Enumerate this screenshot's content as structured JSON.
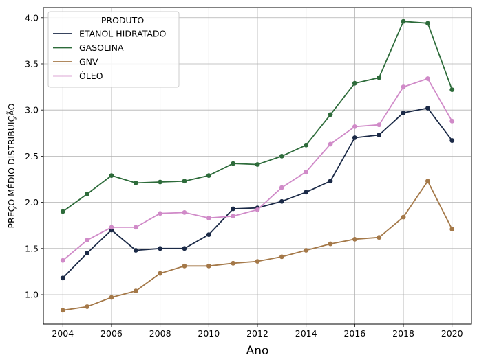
{
  "chart_data": {
    "type": "line",
    "title": "",
    "xlabel": "Ano",
    "ylabel": "PREÇO MÉDIO DISTRIBUIÇÃO",
    "x": [
      2004,
      2005,
      2006,
      2007,
      2008,
      2009,
      2010,
      2011,
      2012,
      2013,
      2014,
      2015,
      2016,
      2017,
      2018,
      2019,
      2020
    ],
    "xlim": [
      2003.2,
      2020.8
    ],
    "ylim": [
      0.68,
      4.11
    ],
    "xticks": [
      2004,
      2006,
      2008,
      2010,
      2012,
      2014,
      2016,
      2018,
      2020
    ],
    "xtick_labels": [
      "2004",
      "2006",
      "2008",
      "2010",
      "2012",
      "2014",
      "2016",
      "2018",
      "2020"
    ],
    "yticks": [
      1.0,
      1.5,
      2.0,
      2.5,
      3.0,
      3.5,
      4.0
    ],
    "ytick_labels": [
      "1.0",
      "1.5",
      "2.0",
      "2.5",
      "3.0",
      "3.5",
      "4.0"
    ],
    "grid": true,
    "legend": {
      "title": "PRODUTO",
      "position": "top-left"
    },
    "series": [
      {
        "name": "ETANOL HIDRATADO",
        "color": "#1b2a47",
        "values": [
          1.18,
          1.45,
          1.7,
          1.48,
          1.5,
          1.5,
          1.65,
          1.93,
          1.94,
          2.01,
          2.11,
          2.23,
          2.7,
          2.73,
          2.97,
          3.02,
          2.67
        ]
      },
      {
        "name": "GASOLINA",
        "color": "#2d6b3a",
        "values": [
          1.9,
          2.09,
          2.29,
          2.21,
          2.22,
          2.23,
          2.29,
          2.42,
          2.41,
          2.5,
          2.62,
          2.95,
          3.29,
          3.35,
          3.96,
          3.94,
          3.22
        ]
      },
      {
        "name": "GNV",
        "color": "#a47848",
        "values": [
          0.83,
          0.87,
          0.97,
          1.04,
          1.23,
          1.31,
          1.31,
          1.34,
          1.36,
          1.41,
          1.48,
          1.55,
          1.6,
          1.62,
          1.84,
          2.23,
          1.71
        ]
      },
      {
        "name": "ÓLEO",
        "color": "#d08ac8",
        "values": [
          1.37,
          1.59,
          1.73,
          1.73,
          1.88,
          1.89,
          1.83,
          1.85,
          1.92,
          2.16,
          2.33,
          2.63,
          2.82,
          2.84,
          3.25,
          3.34,
          2.88
        ]
      }
    ]
  }
}
